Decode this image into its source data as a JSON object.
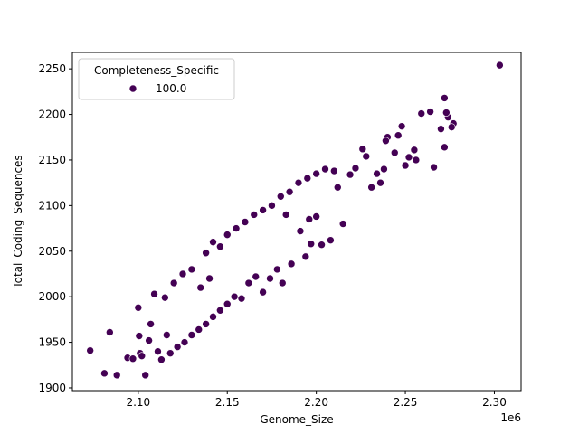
{
  "chart_data": {
    "type": "scatter",
    "xlabel": "Genome_Size",
    "ylabel": "Total_Coding_Sequences",
    "x_offset_label": "1e6",
    "xlim": [
      2063000,
      2315000
    ],
    "ylim": [
      1897,
      2268
    ],
    "x_ticks": [
      2100000,
      2150000,
      2200000,
      2250000,
      2300000
    ],
    "x_tick_labels": [
      "2.10",
      "2.15",
      "2.20",
      "2.25",
      "2.30"
    ],
    "y_ticks": [
      1900,
      1950,
      2000,
      2050,
      2100,
      2150,
      2200,
      2250
    ],
    "y_tick_labels": [
      "1900",
      "1950",
      "2000",
      "2050",
      "2100",
      "2150",
      "2200",
      "2250"
    ],
    "grid": false,
    "legend": {
      "title": "Completeness_Specific",
      "placement": "top-left",
      "entries": [
        {
          "label": "100.0",
          "color": "#440154"
        }
      ]
    },
    "marker_color": "#440154",
    "marker_edge_color": "#ffffff",
    "series": [
      {
        "name": "100.0",
        "points": [
          [
            2073000,
            1941
          ],
          [
            2081000,
            1916
          ],
          [
            2084000,
            1961
          ],
          [
            2088000,
            1914
          ],
          [
            2094000,
            1933
          ],
          [
            2097000,
            1932
          ],
          [
            2100000,
            1988
          ],
          [
            2100500,
            1957
          ],
          [
            2101000,
            1938
          ],
          [
            2102000,
            1935
          ],
          [
            2104000,
            1914
          ],
          [
            2106000,
            1952
          ],
          [
            2107000,
            1970
          ],
          [
            2109000,
            2003
          ],
          [
            2111000,
            1940
          ],
          [
            2113000,
            1931
          ],
          [
            2115000,
            1999
          ],
          [
            2116000,
            1958
          ],
          [
            2303000,
            2254
          ],
          [
            2272000,
            2218
          ],
          [
            2277000,
            2190
          ],
          [
            2276000,
            2186
          ],
          [
            2274000,
            2197
          ],
          [
            2273000,
            2202
          ],
          [
            2272000,
            2164
          ],
          [
            2270000,
            2184
          ],
          [
            2266000,
            2142
          ],
          [
            2264000,
            2203
          ],
          [
            2259000,
            2201
          ],
          [
            2256000,
            2150
          ],
          [
            2255000,
            2161
          ],
          [
            2252000,
            2153
          ],
          [
            2250000,
            2144
          ],
          [
            2248000,
            2187
          ],
          [
            2246000,
            2177
          ],
          [
            2244000,
            2158
          ],
          [
            2240000,
            2175
          ],
          [
            2239000,
            2171
          ],
          [
            2238000,
            2140
          ],
          [
            2236000,
            2125
          ],
          [
            2234000,
            2135
          ],
          [
            2231000,
            2120
          ],
          [
            2228000,
            2154
          ],
          [
            2226000,
            2162
          ],
          [
            2222000,
            2141
          ],
          [
            2219000,
            2134
          ],
          [
            2215000,
            2080
          ],
          [
            2212000,
            2120
          ],
          [
            2208000,
            2062
          ],
          [
            2203000,
            2057
          ],
          [
            2200000,
            2088
          ],
          [
            2197000,
            2058
          ],
          [
            2194000,
            2044
          ],
          [
            2191000,
            2072
          ],
          [
            2186000,
            2036
          ],
          [
            2183000,
            2090
          ],
          [
            2181000,
            2015
          ],
          [
            2178000,
            2030
          ],
          [
            2174000,
            2020
          ],
          [
            2170000,
            2005
          ],
          [
            2166000,
            2022
          ],
          [
            2162000,
            2015
          ],
          [
            2158000,
            1998
          ],
          [
            2154000,
            2000
          ],
          [
            2150000,
            1992
          ],
          [
            2146000,
            1985
          ],
          [
            2142000,
            1978
          ],
          [
            2138000,
            1970
          ],
          [
            2134000,
            1964
          ],
          [
            2130000,
            1958
          ],
          [
            2126000,
            1950
          ],
          [
            2122000,
            1945
          ],
          [
            2118000,
            1938
          ],
          [
            2138000,
            2048
          ],
          [
            2142000,
            2060
          ],
          [
            2146000,
            2055
          ],
          [
            2150000,
            2068
          ],
          [
            2155000,
            2075
          ],
          [
            2160000,
            2082
          ],
          [
            2165000,
            2090
          ],
          [
            2170000,
            2095
          ],
          [
            2175000,
            2100
          ],
          [
            2180000,
            2110
          ],
          [
            2185000,
            2115
          ],
          [
            2190000,
            2125
          ],
          [
            2195000,
            2130
          ],
          [
            2200000,
            2135
          ],
          [
            2205000,
            2140
          ],
          [
            2210000,
            2138
          ],
          [
            2196000,
            2085
          ],
          [
            2120000,
            2015
          ],
          [
            2125000,
            2025
          ],
          [
            2130000,
            2030
          ],
          [
            2135000,
            2010
          ],
          [
            2140000,
            2020
          ]
        ]
      }
    ]
  }
}
